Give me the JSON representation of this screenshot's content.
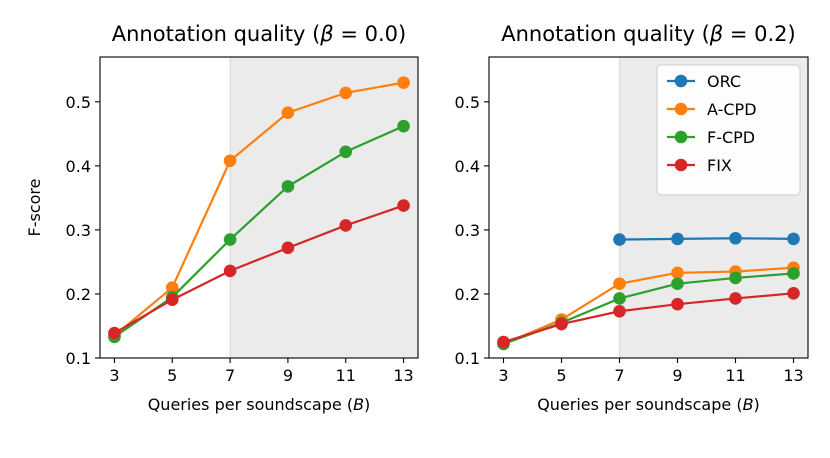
{
  "chart_data": [
    {
      "type": "line",
      "title": "Annotation quality (β = 0.0)",
      "title_prefix": "Annotation quality (",
      "title_symbol": "β",
      "title_suffix": " = 0.0)",
      "xlabel_prefix": "Queries per soundscape (",
      "xlabel_symbol": "B",
      "xlabel_suffix": ")",
      "ylabel": "F-score",
      "ylim": [
        0.1,
        0.57
      ],
      "xlim": [
        2.5,
        13.5
      ],
      "xticks": [
        3,
        5,
        7,
        9,
        11,
        13
      ],
      "xtick_labels": [
        "3",
        "5",
        "7",
        "9",
        "11",
        "13"
      ],
      "yticks": [
        0.1,
        0.2,
        0.3,
        0.4,
        0.5
      ],
      "ytick_labels": [
        "0.1",
        "0.2",
        "0.3",
        "0.4",
        "0.5"
      ],
      "shaded_x_range": [
        7,
        13.5
      ],
      "series": [
        {
          "name": "A-CPD",
          "color": "#ff7f0e",
          "x": [
            3,
            5,
            7,
            9,
            11,
            13
          ],
          "values": [
            0.135,
            0.21,
            0.408,
            0.483,
            0.514,
            0.53
          ]
        },
        {
          "name": "F-CPD",
          "color": "#2ca02c",
          "x": [
            3,
            5,
            7,
            9,
            11,
            13
          ],
          "values": [
            0.133,
            0.195,
            0.285,
            0.368,
            0.422,
            0.462
          ]
        },
        {
          "name": "FIX",
          "color": "#d62728",
          "x": [
            3,
            5,
            7,
            9,
            11,
            13
          ],
          "values": [
            0.139,
            0.191,
            0.236,
            0.272,
            0.307,
            0.338
          ]
        }
      ]
    },
    {
      "type": "line",
      "title": "Annotation quality (β = 0.2)",
      "title_prefix": "Annotation quality (",
      "title_symbol": "β",
      "title_suffix": " = 0.2)",
      "xlabel_prefix": "Queries per soundscape (",
      "xlabel_symbol": "B",
      "xlabel_suffix": ")",
      "ylabel": "",
      "ylim": [
        0.1,
        0.57
      ],
      "xlim": [
        2.5,
        13.5
      ],
      "xticks": [
        3,
        5,
        7,
        9,
        11,
        13
      ],
      "xtick_labels": [
        "3",
        "5",
        "7",
        "9",
        "11",
        "13"
      ],
      "yticks": [
        0.1,
        0.2,
        0.3,
        0.4,
        0.5
      ],
      "ytick_labels": [
        "0.1",
        "0.2",
        "0.3",
        "0.4",
        "0.5"
      ],
      "shaded_x_range": [
        7,
        13.5
      ],
      "legend_position": "top-right",
      "series": [
        {
          "name": "ORC",
          "color": "#1f77b4",
          "x": [
            7,
            9,
            11,
            13
          ],
          "values": [
            0.285,
            0.286,
            0.287,
            0.286
          ]
        },
        {
          "name": "A-CPD",
          "color": "#ff7f0e",
          "x": [
            3,
            5,
            7,
            9,
            11,
            13
          ],
          "values": [
            0.122,
            0.16,
            0.216,
            0.233,
            0.235,
            0.241
          ]
        },
        {
          "name": "F-CPD",
          "color": "#2ca02c",
          "x": [
            3,
            5,
            7,
            9,
            11,
            13
          ],
          "values": [
            0.122,
            0.155,
            0.193,
            0.216,
            0.225,
            0.232
          ]
        },
        {
          "name": "FIX",
          "color": "#d62728",
          "x": [
            3,
            5,
            7,
            9,
            11,
            13
          ],
          "values": [
            0.125,
            0.153,
            0.173,
            0.184,
            0.193,
            0.201
          ]
        }
      ]
    }
  ]
}
